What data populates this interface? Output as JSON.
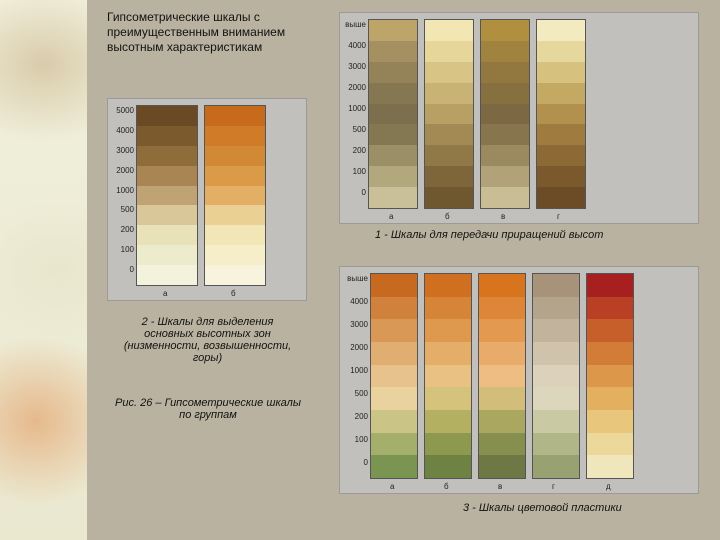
{
  "title": "Гипсометрические шкалы с преимущественным вниманием высотным характеристикам",
  "caption1": "1 - Шкалы для передачи приращений высот",
  "caption2": "2 - Шкалы для выделения основных высотных зон (низменности, возвышенности, горы)",
  "caption3": "3 - Шкалы цветовой пластики",
  "figure": "Рис. 26 – Гипсометрические шкалы по группам",
  "label_fontsize": 8,
  "title_fontsize": 12,
  "caption_fontsize": 11,
  "background_color": "#b9b2a0",
  "chart_bg": "#c1c0bc",
  "group2": {
    "labels": [
      "5000",
      "4000",
      "3000",
      "2000",
      "1000",
      "500",
      "200",
      "100",
      "0"
    ],
    "bottom_letters": [
      "а",
      "б"
    ],
    "label_col_width": 24,
    "strip_width": 62,
    "strips": [
      [
        "#6a4a24",
        "#7b5a2d",
        "#8f6d3a",
        "#a88552",
        "#c0a374",
        "#d9c79a",
        "#e9e1b8",
        "#ecebcb",
        "#f3f3dd"
      ],
      [
        "#c76a1c",
        "#cf7b27",
        "#d18935",
        "#db9a47",
        "#e2af64",
        "#ead193",
        "#f2e6b6",
        "#f5eec8",
        "#f8f3dc"
      ]
    ]
  },
  "group1": {
    "labels": [
      "выше",
      "4000",
      "3000",
      "2000",
      "1000",
      "500",
      "200",
      "100",
      "0"
    ],
    "bottom_letters": [
      "а",
      "б",
      "в",
      "г"
    ],
    "label_col_width": 24,
    "strip_width": 50,
    "strips": [
      [
        "#bda56a",
        "#a59061",
        "#948259",
        "#857752",
        "#7c6f4d",
        "#837852",
        "#9a8f66",
        "#b2a87d",
        "#c9c099"
      ],
      [
        "#f2e7b2",
        "#e6d69a",
        "#d8c586",
        "#c9b374",
        "#b8a064",
        "#a38a54",
        "#917847",
        "#7f663a",
        "#6f5730"
      ],
      [
        "#b08f3f",
        "#a0833e",
        "#92783e",
        "#867040",
        "#7c6944",
        "#87754e",
        "#9b8960",
        "#b2a279",
        "#c9bd96"
      ],
      [
        "#f3eac0",
        "#e6d79d",
        "#d6c17e",
        "#c4a963",
        "#b2914f",
        "#9f7b40",
        "#8d6935",
        "#7c592d",
        "#6c4c26"
      ]
    ]
  },
  "group3": {
    "labels": [
      "выше",
      "4000",
      "3000",
      "2000",
      "1000",
      "500",
      "200",
      "100",
      "0"
    ],
    "bottom_letters": [
      "а",
      "б",
      "в",
      "г",
      "д"
    ],
    "label_col_width": 26,
    "strip_width": 48,
    "strips": [
      [
        "#c7691e",
        "#d0813b",
        "#d99856",
        "#e1ae71",
        "#e7c28c",
        "#ead29f",
        "#cac587",
        "#a3af6a",
        "#7a9552"
      ],
      [
        "#cf6f1f",
        "#d68438",
        "#de994f",
        "#e4ae68",
        "#e9c183",
        "#d6c37b",
        "#b3b062",
        "#8e9950",
        "#6e8243"
      ],
      [
        "#d9741e",
        "#de8637",
        "#e49950",
        "#e9ab69",
        "#edbd83",
        "#d2bd7a",
        "#aaa760",
        "#878f4f",
        "#6e7845"
      ],
      [
        "#a6937a",
        "#b4a48b",
        "#c2b49c",
        "#cfc3ac",
        "#dcd1bb",
        "#dcd6bc",
        "#c9caa4",
        "#b0b688",
        "#97a171"
      ],
      [
        "#a71f1f",
        "#b94024",
        "#c75f2b",
        "#d27c38",
        "#dc974a",
        "#e3b060",
        "#e8c67b",
        "#ecd89b",
        "#efe6bb"
      ]
    ]
  }
}
